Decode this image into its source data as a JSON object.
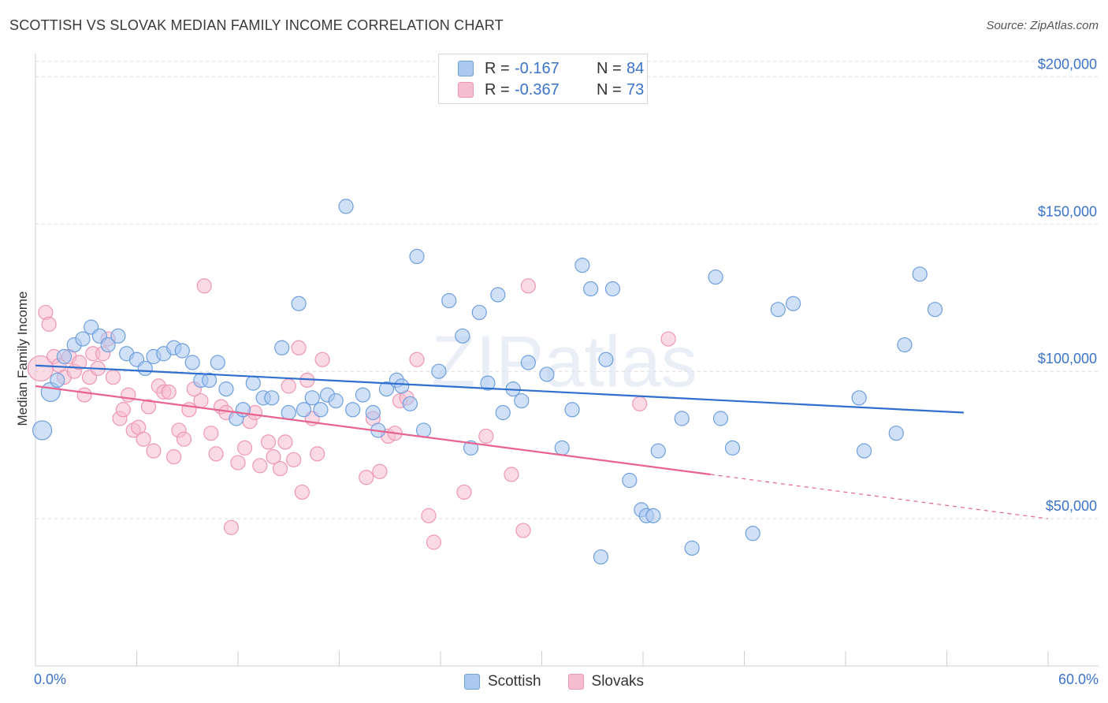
{
  "title": "SCOTTISH VS SLOVAK MEDIAN FAMILY INCOME CORRELATION CHART",
  "source": "Source: ZipAtlas.com",
  "watermark": "ZIPatlas",
  "legend": {
    "rows": [
      {
        "r_label": "R =",
        "r_value": "-0.167",
        "n_label": "N =",
        "n_value": "84"
      },
      {
        "r_label": "R =",
        "r_value": "-0.367",
        "n_label": "N =",
        "n_value": "73"
      }
    ]
  },
  "bottom_legend": {
    "scottish": "Scottish",
    "slovaks": "Slovaks"
  },
  "x_axis": {
    "min_label": "0.0%",
    "max_label": "60.0%"
  },
  "colors": {
    "scottish_fill": "#aac8f0",
    "scottish_stroke": "#6f9fdd",
    "scottish_line": "#2f6fcf",
    "slovak_fill": "#f6bcd0",
    "slovak_stroke": "#ee97b4",
    "slovak_line": "#e8648f",
    "tick_text": "#3b73c9",
    "grid": "#dcdcdc"
  },
  "chart_data": {
    "type": "scatter",
    "xlabel": "",
    "ylabel": "Median Family Income",
    "xlim": [
      0,
      60
    ],
    "ylim": [
      0,
      210000
    ],
    "y_ticks": [
      {
        "value": 50000,
        "label": "$50,000"
      },
      {
        "value": 100000,
        "label": "$100,000"
      },
      {
        "value": 150000,
        "label": "$150,000"
      },
      {
        "value": 200000,
        "label": "$200,000"
      }
    ],
    "grid": "horizontal dashed",
    "legend_placement": "top-center",
    "series": [
      {
        "name": "Scottish",
        "r": -0.167,
        "n": 84,
        "trend": {
          "x": [
            0,
            55
          ],
          "y": [
            102000,
            86000
          ]
        },
        "points": [
          [
            0.4,
            80000
          ],
          [
            0.9,
            93000
          ],
          [
            1.3,
            97000
          ],
          [
            1.7,
            105000
          ],
          [
            2.3,
            109000
          ],
          [
            2.8,
            111000
          ],
          [
            3.3,
            115000
          ],
          [
            3.8,
            112000
          ],
          [
            4.3,
            109000
          ],
          [
            4.9,
            112000
          ],
          [
            5.4,
            106000
          ],
          [
            6.0,
            104000
          ],
          [
            6.5,
            101000
          ],
          [
            7.0,
            105000
          ],
          [
            7.6,
            106000
          ],
          [
            8.2,
            108000
          ],
          [
            8.7,
            107000
          ],
          [
            9.3,
            103000
          ],
          [
            9.8,
            97000
          ],
          [
            10.3,
            97000
          ],
          [
            10.8,
            103000
          ],
          [
            11.3,
            94000
          ],
          [
            11.9,
            84000
          ],
          [
            12.3,
            87000
          ],
          [
            12.9,
            96000
          ],
          [
            13.5,
            91000
          ],
          [
            14.0,
            91000
          ],
          [
            14.6,
            108000
          ],
          [
            15.0,
            86000
          ],
          [
            15.6,
            123000
          ],
          [
            15.9,
            87000
          ],
          [
            16.4,
            91000
          ],
          [
            16.9,
            87000
          ],
          [
            17.3,
            92000
          ],
          [
            17.8,
            90000
          ],
          [
            18.4,
            156000
          ],
          [
            18.8,
            87000
          ],
          [
            19.4,
            92000
          ],
          [
            20.0,
            86000
          ],
          [
            20.3,
            80000
          ],
          [
            20.8,
            94000
          ],
          [
            21.4,
            97000
          ],
          [
            21.7,
            95000
          ],
          [
            22.2,
            89000
          ],
          [
            22.6,
            139000
          ],
          [
            23.0,
            80000
          ],
          [
            23.9,
            100000
          ],
          [
            24.5,
            124000
          ],
          [
            25.3,
            112000
          ],
          [
            25.8,
            74000
          ],
          [
            26.3,
            120000
          ],
          [
            26.8,
            96000
          ],
          [
            27.4,
            126000
          ],
          [
            27.7,
            86000
          ],
          [
            28.3,
            94000
          ],
          [
            28.8,
            90000
          ],
          [
            29.2,
            103000
          ],
          [
            30.3,
            99000
          ],
          [
            31.2,
            74000
          ],
          [
            31.8,
            87000
          ],
          [
            32.4,
            136000
          ],
          [
            32.9,
            128000
          ],
          [
            33.5,
            37000
          ],
          [
            33.8,
            104000
          ],
          [
            34.2,
            128000
          ],
          [
            35.2,
            63000
          ],
          [
            35.9,
            53000
          ],
          [
            36.2,
            51000
          ],
          [
            36.6,
            51000
          ],
          [
            36.9,
            73000
          ],
          [
            38.3,
            84000
          ],
          [
            38.9,
            40000
          ],
          [
            40.3,
            132000
          ],
          [
            40.6,
            84000
          ],
          [
            41.3,
            74000
          ],
          [
            42.5,
            45000
          ],
          [
            44.0,
            121000
          ],
          [
            44.9,
            123000
          ],
          [
            48.8,
            91000
          ],
          [
            49.1,
            73000
          ],
          [
            51.0,
            79000
          ],
          [
            51.5,
            109000
          ],
          [
            52.4,
            133000
          ],
          [
            53.3,
            121000
          ]
        ]
      },
      {
        "name": "Slovaks",
        "r": -0.367,
        "n": 73,
        "trend": {
          "x": [
            0,
            40
          ],
          "y": [
            95000,
            65000
          ]
        },
        "trend_dashed": {
          "x": [
            40,
            60
          ],
          "y": [
            65000,
            50000
          ]
        },
        "points": [
          [
            0.3,
            101000
          ],
          [
            0.6,
            120000
          ],
          [
            0.8,
            116000
          ],
          [
            1.1,
            105000
          ],
          [
            1.4,
            102000
          ],
          [
            1.7,
            98000
          ],
          [
            2.0,
            105000
          ],
          [
            2.3,
            100000
          ],
          [
            2.6,
            103000
          ],
          [
            2.9,
            92000
          ],
          [
            3.2,
            98000
          ],
          [
            3.4,
            106000
          ],
          [
            3.7,
            101000
          ],
          [
            4.0,
            106000
          ],
          [
            4.3,
            111000
          ],
          [
            4.6,
            98000
          ],
          [
            5.0,
            84000
          ],
          [
            5.2,
            87000
          ],
          [
            5.5,
            92000
          ],
          [
            5.8,
            80000
          ],
          [
            6.1,
            81000
          ],
          [
            6.4,
            77000
          ],
          [
            6.7,
            88000
          ],
          [
            7.0,
            73000
          ],
          [
            7.3,
            95000
          ],
          [
            7.6,
            93000
          ],
          [
            7.9,
            93000
          ],
          [
            8.2,
            71000
          ],
          [
            8.5,
            80000
          ],
          [
            8.8,
            77000
          ],
          [
            9.1,
            87000
          ],
          [
            9.4,
            94000
          ],
          [
            9.8,
            90000
          ],
          [
            10.0,
            129000
          ],
          [
            10.4,
            79000
          ],
          [
            10.7,
            72000
          ],
          [
            11.0,
            88000
          ],
          [
            11.3,
            86000
          ],
          [
            11.6,
            47000
          ],
          [
            12.0,
            69000
          ],
          [
            12.4,
            74000
          ],
          [
            12.7,
            83000
          ],
          [
            13.0,
            86000
          ],
          [
            13.3,
            68000
          ],
          [
            13.8,
            76000
          ],
          [
            14.1,
            71000
          ],
          [
            14.5,
            67000
          ],
          [
            14.8,
            76000
          ],
          [
            15.0,
            95000
          ],
          [
            15.3,
            70000
          ],
          [
            15.6,
            108000
          ],
          [
            15.8,
            59000
          ],
          [
            16.1,
            97000
          ],
          [
            16.4,
            84000
          ],
          [
            16.7,
            72000
          ],
          [
            17.0,
            104000
          ],
          [
            19.6,
            64000
          ],
          [
            20.0,
            84000
          ],
          [
            20.4,
            66000
          ],
          [
            20.9,
            78000
          ],
          [
            21.3,
            79000
          ],
          [
            21.6,
            90000
          ],
          [
            22.6,
            104000
          ],
          [
            23.3,
            51000
          ],
          [
            23.6,
            42000
          ],
          [
            25.4,
            59000
          ],
          [
            26.7,
            78000
          ],
          [
            28.2,
            65000
          ],
          [
            28.9,
            46000
          ],
          [
            29.2,
            129000
          ],
          [
            35.8,
            89000
          ],
          [
            37.5,
            111000
          ],
          [
            22.0,
            91000
          ]
        ]
      }
    ]
  }
}
